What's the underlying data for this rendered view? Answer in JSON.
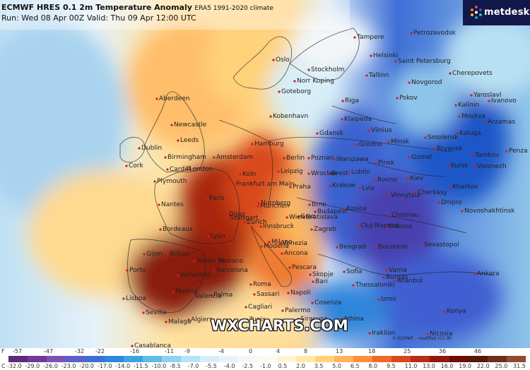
{
  "header": {
    "line1_main": "ECMWF HRES 0.1 2m Temperature Anomaly",
    "line1_sub": "ERA5 1991-2020 climate",
    "line2": "Run: Wed 08 Apr 00Z Valid: Thu 09 Apr 12:00 UTC"
  },
  "brand": {
    "name": "metdesk"
  },
  "watermark": "WXCHARTS.COM",
  "credit": "© ECMWF - modified (CC BY",
  "colorbar": {
    "f_unit": "F",
    "c_unit": "C",
    "f_labels": [
      "-57",
      "-47",
      "-32",
      "-22",
      "-16",
      "-11",
      "-9",
      "-4",
      "0",
      "4",
      "8",
      "13",
      "18",
      "25",
      "36",
      "46"
    ],
    "c_labels": [
      "-32.0",
      "-29.0",
      "-26.0",
      "-23.0",
      "-20.0",
      "-17.0",
      "-14.0",
      "-11.5",
      "-10.0",
      "-8.5",
      "-7.0",
      "-5.5",
      "-4.0",
      "-2.5",
      "-1.0",
      "0.5",
      "2.0",
      "3.5",
      "5.0",
      "6.5",
      "8.0",
      "9.5",
      "11.0",
      "13.0",
      "16.0",
      "19.0",
      "22.0",
      "25.0",
      "31.5"
    ],
    "colors": [
      "#5f2a7a",
      "#6f3a9a",
      "#7a52b8",
      "#5d5fc9",
      "#3f6fd6",
      "#2f86db",
      "#3ea3e0",
      "#5fbde6",
      "#8fd3ee",
      "#b8e3f4",
      "#d7eef8",
      "#e8f3f9",
      "#f4f7f8",
      "#fbfaf3",
      "#fff5d6",
      "#ffe9a6",
      "#ffd27a",
      "#ffb35a",
      "#fb8f3d",
      "#ee6a2a",
      "#d8481b",
      "#b82d14",
      "#93180f",
      "#6f0c0a",
      "#551809",
      "#6d2f1a",
      "#8f4b2f"
    ]
  },
  "cities": [
    "Tampere",
    "Petrozavodsk",
    "Helsinki",
    "Saint Petersburg",
    "Oslo",
    "Stockholm",
    "Tallinn",
    "Novgorod",
    "Cherepovets",
    "Norr Koping",
    "Goteborg",
    "Riga",
    "Yaroslavl",
    "Aberdeen",
    "Pskov",
    "Kalinin",
    "Ivanovo",
    "Moskva",
    "Arzamas",
    "Klaipeda",
    "Newcastle",
    "Kobenhavn",
    "Vilnius",
    "Gdansk",
    "Minsk",
    "Smolensk",
    "Bryansk",
    "Kaluga",
    "Tambov",
    "Penza",
    "Hamburg",
    "Grodno",
    "Leeds",
    "Dublin",
    "Birmingham",
    "Amsterdam",
    "Berlin",
    "Poznan",
    "Warszawa",
    "Brest",
    "Pinsk",
    "Gomel",
    "Kursk",
    "Voronezh",
    "Cork",
    "Cardiff",
    "London",
    "Koln",
    "Leipzig",
    "Wroclaw",
    "Lublin",
    "Rovno",
    "Kiev",
    "Plymouth",
    "Frankfurt am Main",
    "Praha",
    "Krakow",
    "Lviv",
    "Vinnytsia",
    "Cherkasy",
    "Kharkov",
    "Paris",
    "Nurnberg",
    "Brno",
    "Kosice",
    "Stuttgart",
    "Wien",
    "Dnipro",
    "Novoshakhtinsk",
    "Nantes",
    "Munchen",
    "Bratislava",
    "Budapest",
    "Chisinau",
    "Odessa",
    "Dijon",
    "Zurich",
    "Innsbruck",
    "Graz",
    "Cluj-Napoca",
    "Bordeaux",
    "Lyon",
    "Milano",
    "Venezia",
    "Zagreb",
    "Beograd",
    "Bucuresti",
    "Sevastopol",
    "Gijon",
    "Bilbao",
    "Toulouse",
    "Monaco",
    "Modena",
    "Ancona",
    "Varna",
    "Porto",
    "Valladolid",
    "Barcelona",
    "Pescara",
    "Sofia",
    "Burgas",
    "Skopje",
    "Istanbul",
    "Madrid",
    "Roma",
    "Bari",
    "Lisboa",
    "Valencia",
    "Palma",
    "Sassari",
    "Napoli",
    "Thessaloniki",
    "Ankara",
    "Cagliari",
    "Cosenza",
    "Sevilla",
    "Malaga",
    "Palermo",
    "Konya",
    "Izmir",
    "Athina",
    "Algiers",
    "Tunis",
    "Siracusa",
    "Casablanca",
    "Iraklion",
    "Nicosia"
  ]
}
